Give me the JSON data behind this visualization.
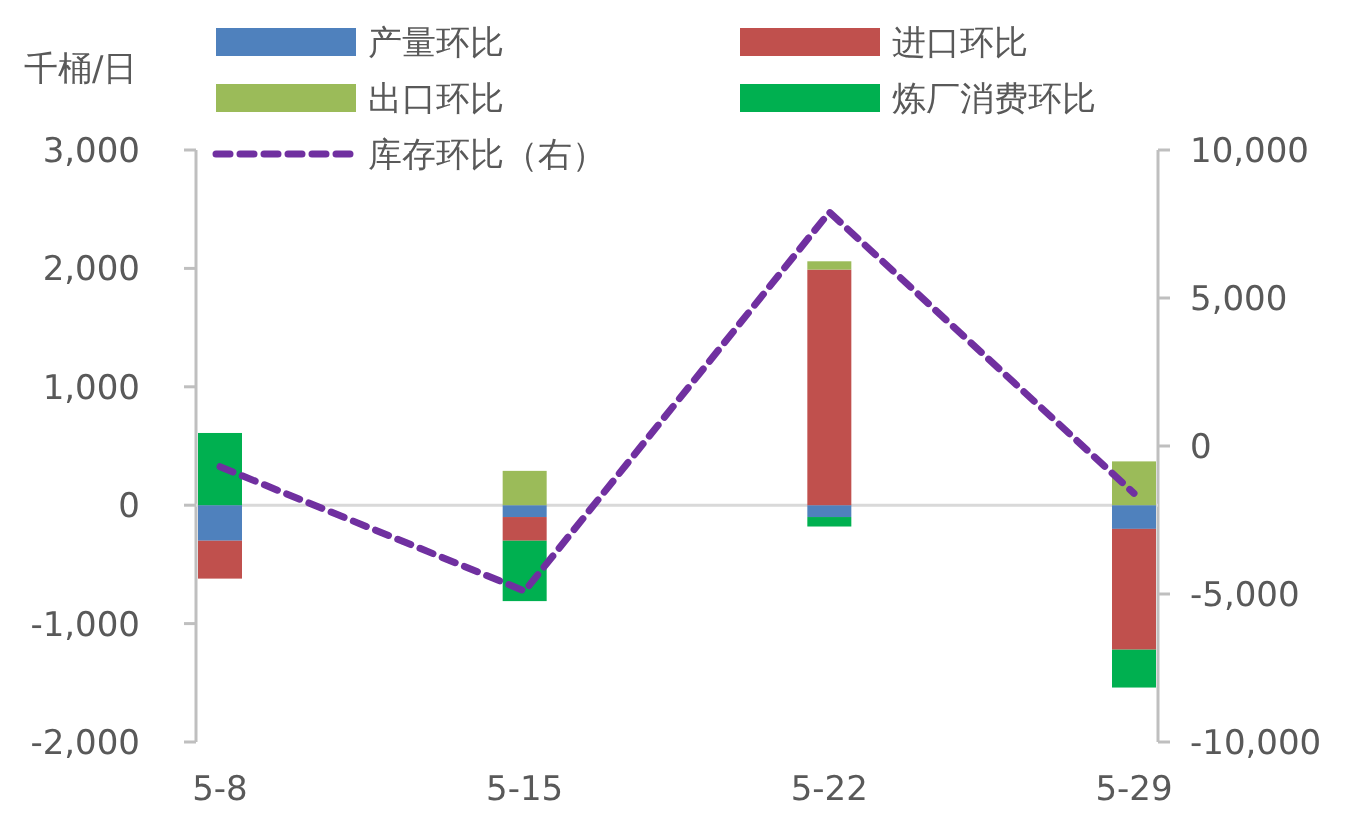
{
  "chart_data": {
    "type": "bar",
    "stacked": true,
    "ylabel": "千桶/日",
    "categories": [
      "5-8",
      "5-15",
      "5-22",
      "5-29"
    ],
    "ylim": [
      -2000,
      3000
    ],
    "yticks": [
      {
        "value": -2000,
        "label": "-2,000"
      },
      {
        "value": -1000,
        "label": "-1,000"
      },
      0,
      {
        "value": 1000,
        "label": "1,000"
      },
      {
        "value": 2000,
        "label": "2,000"
      },
      {
        "value": 3000,
        "label": "3,000"
      }
    ],
    "y2lim": [
      -10000,
      10000
    ],
    "y2ticks": [
      {
        "value": -10000,
        "label": "-10,000"
      },
      {
        "value": -5000,
        "label": "-5,000"
      },
      0,
      {
        "value": 5000,
        "label": "5,000"
      },
      {
        "value": 10000,
        "label": "10,000"
      }
    ],
    "legend": "top",
    "series": [
      {
        "name": "产量环比",
        "color": "#4f81bd",
        "values": [
          -300,
          -100,
          -100,
          -200
        ]
      },
      {
        "name": "进口环比",
        "color": "#c0504d",
        "values": [
          -320,
          -200,
          1990,
          -1020
        ]
      },
      {
        "name": "出口环比",
        "color": "#9bbb59",
        "values": [
          0,
          290,
          70,
          370
        ]
      },
      {
        "name": "炼厂消费环比",
        "color": "#00b050",
        "values": [
          610,
          -510,
          -80,
          -320
        ]
      },
      {
        "name": "库存环比（右）",
        "type": "line",
        "axis": "y2",
        "color": "#7030a0",
        "line_style": "dashed",
        "marker": "none",
        "values": [
          -700,
          -4900,
          7900,
          -1600
        ]
      }
    ]
  }
}
